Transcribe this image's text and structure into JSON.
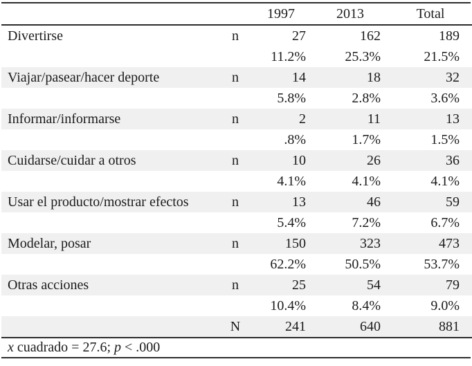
{
  "colors": {
    "row_shade": "#f0f0f0",
    "rule": "#2b2b2b",
    "text": "#1b1b1b",
    "background": "#ffffff"
  },
  "header": {
    "col_label": "",
    "col_stat": "",
    "col_year_1": "1997",
    "col_year_2": "2013",
    "col_total": "Total"
  },
  "rows": [
    {
      "label": "Divertirse",
      "stat": "n",
      "y1997": "27",
      "y2013": "162",
      "total": "189",
      "shaded": false
    },
    {
      "label": "",
      "stat": "",
      "y1997": "11.2%",
      "y2013": "25.3%",
      "total": "21.5%",
      "shaded": false
    },
    {
      "label": "Viajar/pasear/hacer deporte",
      "stat": "n",
      "y1997": "14",
      "y2013": "18",
      "total": "32",
      "shaded": true
    },
    {
      "label": "",
      "stat": "",
      "y1997": "5.8%",
      "y2013": "2.8%",
      "total": "3.6%",
      "shaded": false
    },
    {
      "label": "Informar/informarse",
      "stat": "n",
      "y1997": "2",
      "y2013": "11",
      "total": "13",
      "shaded": true
    },
    {
      "label": "",
      "stat": "",
      "y1997": ".8%",
      "y2013": "1.7%",
      "total": "1.5%",
      "shaded": false
    },
    {
      "label": "Cuidarse/cuidar a otros",
      "stat": "n",
      "y1997": "10",
      "y2013": "26",
      "total": "36",
      "shaded": true
    },
    {
      "label": "",
      "stat": "",
      "y1997": "4.1%",
      "y2013": "4.1%",
      "total": "4.1%",
      "shaded": false
    },
    {
      "label": "Usar el producto/mostrar efectos",
      "stat": "n",
      "y1997": "13",
      "y2013": "46",
      "total": "59",
      "shaded": true
    },
    {
      "label": "",
      "stat": "",
      "y1997": "5.4%",
      "y2013": "7.2%",
      "total": "6.7%",
      "shaded": false
    },
    {
      "label": "Modelar, posar",
      "stat": "n",
      "y1997": "150",
      "y2013": "323",
      "total": "473",
      "shaded": true
    },
    {
      "label": "",
      "stat": "",
      "y1997": "62.2%",
      "y2013": "50.5%",
      "total": "53.7%",
      "shaded": false
    },
    {
      "label": "Otras acciones",
      "stat": "n",
      "y1997": "25",
      "y2013": "54",
      "total": "79",
      "shaded": true
    },
    {
      "label": "",
      "stat": "",
      "y1997": "10.4%",
      "y2013": "8.4%",
      "total": "9.0%",
      "shaded": false
    },
    {
      "label": "",
      "stat": "N",
      "y1997": "241",
      "y2013": "640",
      "total": "881",
      "shaded": true
    }
  ],
  "footnote": {
    "x_italic": "x",
    "mid": " cuadrado = 27.6; ",
    "p_italic": "p",
    "tail": " < .000"
  }
}
